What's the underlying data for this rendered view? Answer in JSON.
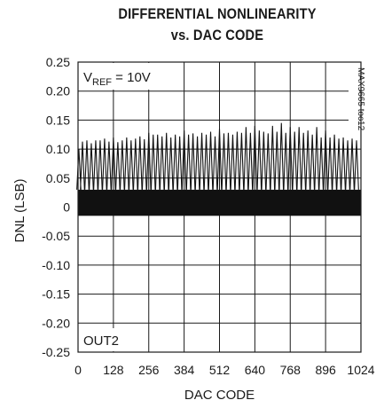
{
  "chart_data": {
    "type": "line",
    "title": "DIFFERENTIAL NONLINEARITY",
    "subtitle": "vs. DAC CODE",
    "xlabel": "DAC CODE",
    "ylabel": "DNL (LSB)",
    "xlim": [
      0,
      1024
    ],
    "ylim": [
      -0.25,
      0.25
    ],
    "xticks": [
      "0",
      "128",
      "256",
      "384",
      "512",
      "640",
      "768",
      "896",
      "1024"
    ],
    "yticks": [
      "0.25",
      "0.20",
      "0.15",
      "0.10",
      "0.05",
      "0",
      "-0.05",
      "-0.10",
      "-0.15",
      "-0.20",
      "-0.25"
    ],
    "grid": true,
    "annotations": {
      "vref_prefix": "V",
      "vref_sub": "REF",
      "vref_suffix": " = 10V",
      "output": "OUT2",
      "ref_code": "MAX9665 toc12"
    },
    "series": [
      {
        "spike_codes": [
          3,
          16,
          32,
          48,
          64,
          80,
          96,
          112,
          128,
          144,
          160,
          176,
          192,
          208,
          224,
          240,
          256,
          272,
          288,
          304,
          320,
          336,
          352,
          368,
          384,
          400,
          416,
          432,
          448,
          464,
          480,
          496,
          512,
          528,
          544,
          560,
          576,
          592,
          608,
          624,
          640,
          656,
          672,
          688,
          704,
          720,
          736,
          752,
          768,
          784,
          800,
          816,
          832,
          848,
          864,
          880,
          896,
          912,
          928,
          944,
          960,
          976,
          992,
          1008
        ],
        "spike_values": [
          0.1,
          0.113,
          0.115,
          0.11,
          0.115,
          0.115,
          0.118,
          0.113,
          0.12,
          0.112,
          0.115,
          0.12,
          0.115,
          0.118,
          0.122,
          0.117,
          0.128,
          0.125,
          0.125,
          0.122,
          0.128,
          0.12,
          0.125,
          0.122,
          0.132,
          0.125,
          0.127,
          0.122,
          0.128,
          0.125,
          0.13,
          0.122,
          0.135,
          0.127,
          0.128,
          0.125,
          0.13,
          0.128,
          0.138,
          0.128,
          0.14,
          0.132,
          0.13,
          0.127,
          0.14,
          0.13,
          0.145,
          0.128,
          0.138,
          0.13,
          0.138,
          0.128,
          0.132,
          0.125,
          0.138,
          0.12,
          0.132,
          0.12,
          0.125,
          0.118,
          0.12,
          0.115,
          0.118,
          0.115
        ],
        "baseline_band": [
          -0.015,
          0.03
        ]
      }
    ]
  }
}
